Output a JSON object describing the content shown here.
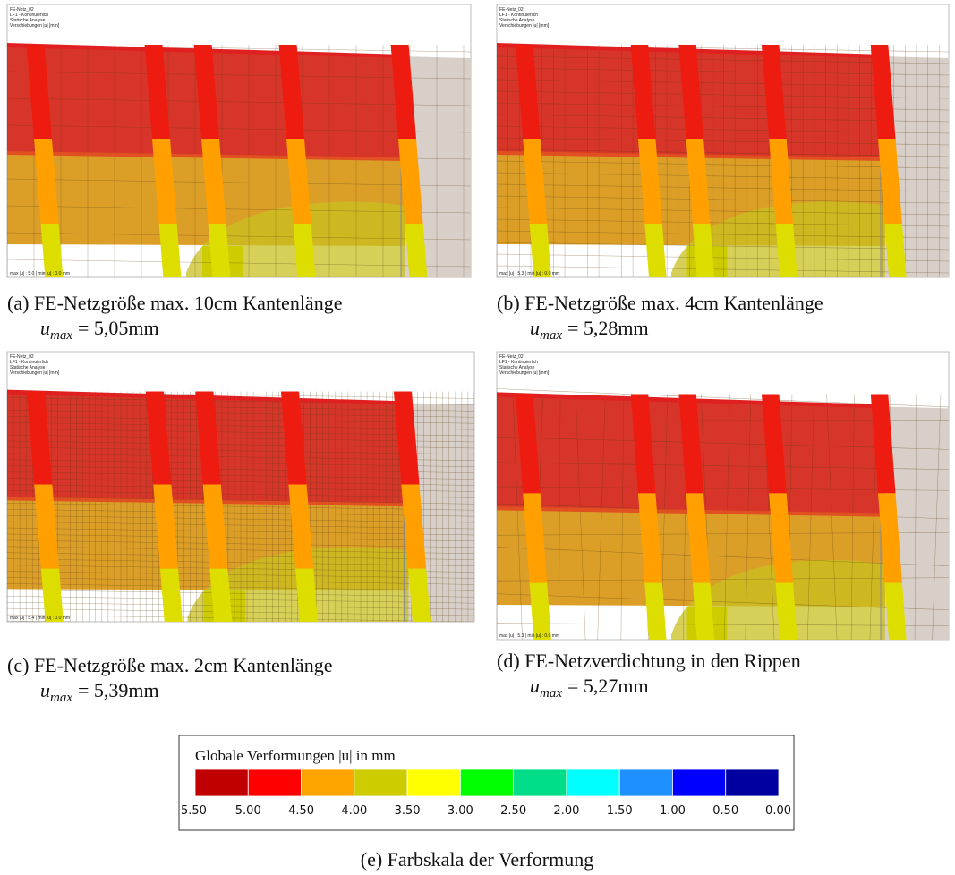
{
  "panels": [
    {
      "header": [
        "FE-Netz_02",
        "LF1 - Kontinuierlich",
        "Statische Analyse",
        "Verschiebungen |u| [mm]"
      ],
      "footer": "max |u| : 5.0 | min |u| : 0.0 mm",
      "caption": "(a) FE-Netzgröße max. 10cm Kantenlänge",
      "result": {
        "variable": "u",
        "subscript": "max",
        "equation": "= 5,05mm"
      }
    },
    {
      "header": [
        "FE-Netz_02",
        "LF1 - Kontinuierlich",
        "Statische Analyse",
        "Verschiebungen |u| [mm]"
      ],
      "footer": "max |u| : 5.3 | min |u| : 0.0 mm",
      "caption": "(b) FE-Netzgröße max. 4cm Kantenlänge",
      "result": {
        "variable": "u",
        "subscript": "max",
        "equation": "= 5,28mm"
      }
    },
    {
      "header": [
        "FE-Netz_02",
        "LF1 - Kontinuierlich",
        "Statische Analyse",
        "Verschiebungen |u| [mm]"
      ],
      "footer": "max |u| : 5.4 | min |u| : 0.0 mm",
      "caption": "(c) FE-Netzgröße max. 2cm Kantenlänge",
      "result": {
        "variable": "u",
        "subscript": "max",
        "equation": "= 5,39mm"
      }
    },
    {
      "header": [
        "FE-Netz_02",
        "LF1 - Kontinuierlich",
        "Statische Analyse",
        "Verschiebungen |u| [mm]"
      ],
      "footer": "max |u| : 5.3 | min |u| : 0.0 mm",
      "caption": "(d) FE-Netzverdichtung in den Rippen",
      "result": {
        "variable": "u",
        "subscript": "max",
        "equation": "= 5,27mm"
      }
    }
  ],
  "legend": {
    "title": "Globale Verformungen |u| in mm",
    "colors": [
      "#c00000",
      "#ff0000",
      "#ffa500",
      "#cccc00",
      "#ffff00",
      "#00ff00",
      "#00dd88",
      "#00ffff",
      "#1e90ff",
      "#0000ff",
      "#0000a0"
    ],
    "labels": [
      "5.50",
      "5.00",
      "4.50",
      "4.00",
      "3.50",
      "3.00",
      "2.50",
      "2.00",
      "1.50",
      "1.00",
      "0.50",
      "0.00"
    ]
  },
  "figure_caption": "(e) Farbskala der Verformung"
}
